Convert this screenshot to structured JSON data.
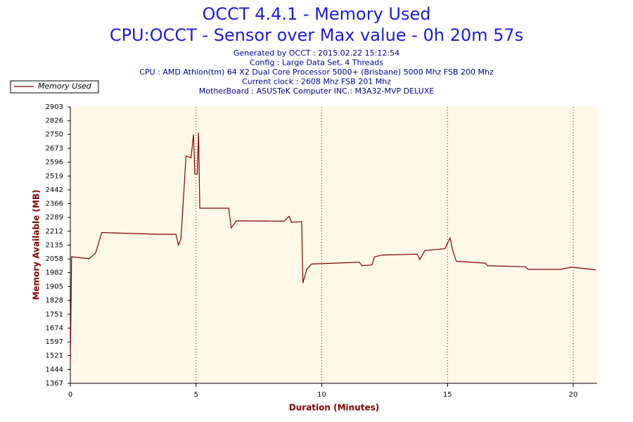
{
  "chart_data": {
    "type": "line",
    "title": "OCCT 4.4.1 - Memory Used",
    "subtitle": "CPU:OCCT - Sensor over Max value - 0h 20m 57s",
    "notes": [
      "Generated by OCCT : 2015.02.22 15:12:54",
      "Config : Large Data Set, 4 Threads",
      "CPU : AMD Athlon(tm) 64 X2 Dual Core Processor 5000+ (Brisbane) 5000 Mhz FSB 200 Mhz",
      "Current clock : 2608 Mhz FSB 201 Mhz",
      "MotherBoard : ASUSTeK Computer INC.: M3A32-MVP DELUXE"
    ],
    "x_label": "Duration (Minutes)",
    "y_label": "Memory Available (MB)",
    "x": [
      0,
      0.05,
      0.75,
      1.0,
      1.25,
      3.5,
      4.2,
      4.3,
      4.4,
      4.6,
      4.8,
      4.9,
      4.95,
      5.05,
      5.1,
      5.15,
      6.3,
      6.4,
      6.6,
      8.5,
      8.7,
      8.8,
      9.2,
      9.25,
      9.4,
      9.6,
      11.5,
      11.6,
      12.0,
      12.1,
      12.4,
      13.8,
      13.9,
      14.1,
      14.9,
      15.1,
      15.2,
      15.35,
      16.5,
      16.6,
      18.1,
      18.2,
      19.5,
      19.9,
      20.1,
      20.9
    ],
    "series": [
      {
        "name": "Memory Used",
        "color": "#800000",
        "values": [
          1480,
          2070,
          2060,
          2090,
          2205,
          2195,
          2195,
          2135,
          2170,
          2630,
          2620,
          2750,
          2530,
          2530,
          2760,
          2340,
          2340,
          2230,
          2270,
          2268,
          2295,
          2262,
          2265,
          1925,
          2000,
          2030,
          2040,
          2020,
          2025,
          2070,
          2080,
          2085,
          2055,
          2105,
          2115,
          2175,
          2110,
          2045,
          2035,
          2020,
          2015,
          2000,
          2000,
          2012,
          2010,
          1998
        ]
      }
    ],
    "xlim": [
      0,
      20.95
    ],
    "xticks": [
      0,
      5,
      10,
      15,
      20
    ],
    "ylim": [
      1367,
      2903
    ],
    "yticks": [
      1367,
      1444,
      1521,
      1597,
      1674,
      1751,
      1828,
      1905,
      1982,
      2058,
      2135,
      2212,
      2289,
      2366,
      2442,
      2519,
      2596,
      2673,
      2750,
      2826,
      2903
    ],
    "grid": "x",
    "legend": "top-left",
    "background": "#fdf8e8"
  }
}
